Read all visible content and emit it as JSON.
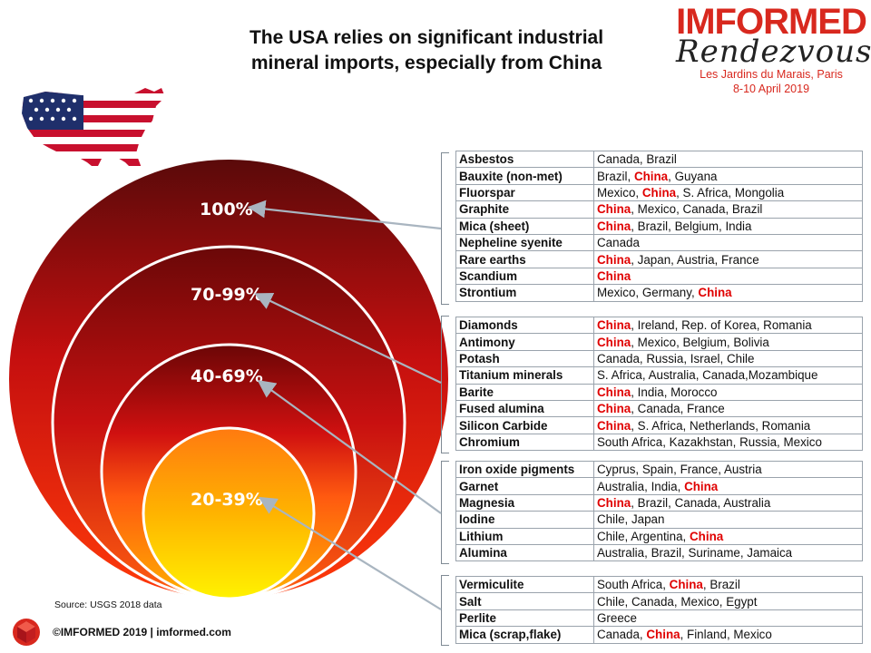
{
  "title_line1": "The USA relies on significant industrial",
  "title_line2": "mineral imports, especially from China",
  "logo": {
    "brand": "IMFORMED",
    "script": "Rendezvous",
    "venue": "Les Jardins du Marais, Paris",
    "dates": "8-10 April 2019"
  },
  "colors": {
    "accent": "#d8281e",
    "china": "#e00000",
    "circle_outer": "#c01010",
    "circle_inner": "#ffe000"
  },
  "levels": [
    "100%",
    "70-99%",
    "40-69%",
    "20-39%"
  ],
  "groups": [
    {
      "rows": [
        {
          "mineral": "Asbestos",
          "countries": [
            "Canada",
            "Brazil"
          ]
        },
        {
          "mineral": "Bauxite (non-met)",
          "countries": [
            "Brazil",
            "China",
            "Guyana"
          ]
        },
        {
          "mineral": "Fluorspar",
          "countries": [
            "Mexico",
            "China",
            "S. Africa",
            "Mongolia"
          ]
        },
        {
          "mineral": "Graphite",
          "countries": [
            "China",
            "Mexico",
            "Canada",
            "Brazil"
          ]
        },
        {
          "mineral": "Mica (sheet)",
          "countries": [
            "China",
            "Brazil",
            "Belgium",
            "India"
          ]
        },
        {
          "mineral": "Nepheline syenite",
          "countries": [
            "Canada"
          ]
        },
        {
          "mineral": "Rare earths",
          "countries": [
            "China",
            "Japan",
            "Austria",
            "France"
          ]
        },
        {
          "mineral": "Scandium",
          "countries": [
            "China"
          ]
        },
        {
          "mineral": "Strontium",
          "countries": [
            "Mexico",
            "Germany",
            "China"
          ]
        }
      ]
    },
    {
      "rows": [
        {
          "mineral": "Diamonds",
          "countries": [
            "China",
            "Ireland",
            "Rep. of Korea",
            "Romania"
          ]
        },
        {
          "mineral": "Antimony",
          "countries": [
            "China",
            "Mexico",
            "Belgium",
            "Bolivia"
          ]
        },
        {
          "mineral": "Potash",
          "countries": [
            "Canada",
            "Russia",
            "Israel",
            "Chile"
          ]
        },
        {
          "mineral": "Titanium minerals",
          "countries": [
            "S. Africa",
            "Australia",
            "Canada,Mozambique"
          ]
        },
        {
          "mineral": "Barite",
          "countries": [
            "China",
            "India",
            "Morocco"
          ]
        },
        {
          "mineral": "Fused alumina",
          "countries": [
            "China",
            "Canada",
            "France"
          ]
        },
        {
          "mineral": "Silicon Carbide",
          "countries": [
            "China",
            "S. Africa",
            "Netherlands",
            "Romania"
          ]
        },
        {
          "mineral": "Chromium",
          "countries": [
            "South Africa",
            "Kazakhstan",
            "Russia",
            "Mexico"
          ]
        }
      ]
    },
    {
      "rows": [
        {
          "mineral": "Iron oxide pigments",
          "countries": [
            "Cyprus",
            "Spain",
            "France",
            "Austria"
          ]
        },
        {
          "mineral": "Garnet",
          "countries": [
            "Australia",
            "India",
            "China"
          ]
        },
        {
          "mineral": "Magnesia",
          "countries": [
            "China",
            "Brazil",
            "Canada",
            "Australia"
          ]
        },
        {
          "mineral": "Iodine",
          "countries": [
            "Chile",
            "Japan"
          ]
        },
        {
          "mineral": "Lithium",
          "countries": [
            "Chile",
            "Argentina",
            "China"
          ]
        },
        {
          "mineral": "Alumina",
          "countries": [
            "Australia",
            "Brazil",
            "Suriname",
            "Jamaica"
          ]
        }
      ]
    },
    {
      "rows": [
        {
          "mineral": "Vermiculite",
          "countries": [
            "South Africa",
            "China",
            "Brazil"
          ]
        },
        {
          "mineral": "Salt",
          "countries": [
            "Chile",
            "Canada",
            "Mexico",
            " Egypt"
          ]
        },
        {
          "mineral": "Perlite",
          "countries": [
            "Greece"
          ]
        },
        {
          "mineral": "Mica (scrap,flake)",
          "countries": [
            "Canada",
            "China",
            "Finland",
            "Mexico"
          ]
        }
      ]
    }
  ],
  "source": "Source: USGS 2018 data",
  "footer": "©IMFORMED 2019  | imformed.com"
}
